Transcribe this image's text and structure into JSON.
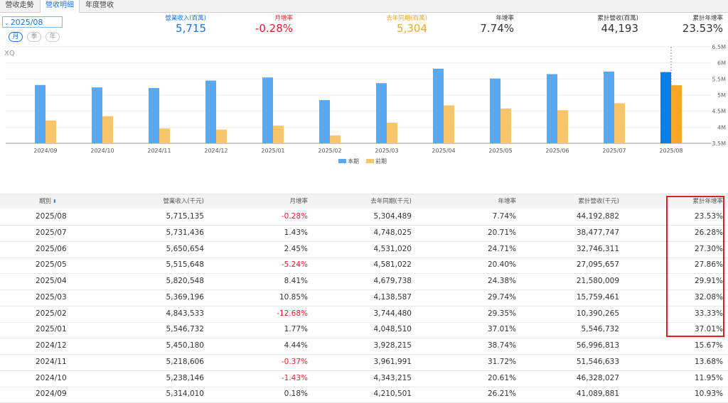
{
  "tabs": [
    "營收走勢",
    "營收明細",
    "年度營收"
  ],
  "date_select": {
    "value": "2025/08"
  },
  "period_buttons": [
    "月",
    "季",
    "年"
  ],
  "stats": [
    {
      "label": "營業收入(百萬)",
      "value": "5,715",
      "color": "#1a73e8"
    },
    {
      "label": "月增率",
      "value": "-0.28%",
      "color": "#e0202e"
    },
    {
      "label": "去年同期(百萬)",
      "value": "5,304",
      "color": "#f5a623"
    },
    {
      "label": "年增率",
      "value": "7.74%",
      "color": "#333333"
    },
    {
      "label": "累計營收(百萬)",
      "value": "44,193",
      "color": "#333333"
    },
    {
      "label": "累計年增率",
      "value": "23.53%",
      "color": "#333333"
    }
  ],
  "watermark": "XQ",
  "chart_data": {
    "type": "bar",
    "categories": [
      "2024/09",
      "2024/10",
      "2024/11",
      "2024/12",
      "2025/01",
      "2025/02",
      "2025/03",
      "2025/04",
      "2025/05",
      "2025/06",
      "2025/07",
      "2025/08"
    ],
    "series": [
      {
        "name": "本期",
        "color": "#5aa9f0",
        "values": [
          5314010,
          5238146,
          5218606,
          5450180,
          5546732,
          4843533,
          5369196,
          5820548,
          5515648,
          5650654,
          5731436,
          5715135
        ]
      },
      {
        "name": "前期",
        "color": "#fbc46a",
        "values": [
          4210501,
          4343215,
          3961991,
          3928215,
          4048510,
          3744480,
          4138587,
          4679738,
          4581022,
          4531020,
          4748025,
          5304489
        ]
      }
    ],
    "yticks": [
      "3.5M",
      "4M",
      "4.5M",
      "5M",
      "5.5M",
      "6M",
      "6.5M"
    ],
    "ylim": [
      3500000,
      6500000
    ],
    "highlight_color": "#0a7ee8",
    "highlight_prev_color": "#f5a623",
    "legend_position": "bottom-center"
  },
  "table": {
    "headers": [
      "期別",
      "營業收入(千元)",
      "月增率",
      "去年同期(千元)",
      "年增率",
      "累計營收(千元)",
      "累計年增率"
    ],
    "rows": [
      [
        "2025/08",
        "5,715,135",
        "-0.28%",
        "5,304,489",
        "7.74%",
        "44,192,882",
        "23.53%"
      ],
      [
        "2025/07",
        "5,731,436",
        "1.43%",
        "4,748,025",
        "20.71%",
        "38,477,747",
        "26.28%"
      ],
      [
        "2025/06",
        "5,650,654",
        "2.45%",
        "4,531,020",
        "24.71%",
        "32,746,311",
        "27.30%"
      ],
      [
        "2025/05",
        "5,515,648",
        "-5.24%",
        "4,581,022",
        "20.40%",
        "27,095,657",
        "27.86%"
      ],
      [
        "2025/04",
        "5,820,548",
        "8.41%",
        "4,679,738",
        "24.38%",
        "21,580,009",
        "29.91%"
      ],
      [
        "2025/03",
        "5,369,196",
        "10.85%",
        "4,138,587",
        "29.74%",
        "15,759,461",
        "32.08%"
      ],
      [
        "2025/02",
        "4,843,533",
        "-12.68%",
        "3,744,480",
        "29.35%",
        "10,390,265",
        "33.33%"
      ],
      [
        "2025/01",
        "5,546,732",
        "1.77%",
        "4,048,510",
        "37.01%",
        "5,546,732",
        "37.01%"
      ],
      [
        "2024/12",
        "5,450,180",
        "4.44%",
        "3,928,215",
        "38.74%",
        "56,996,813",
        "15.67%"
      ],
      [
        "2024/11",
        "5,218,606",
        "-0.37%",
        "3,961,991",
        "31.72%",
        "51,546,633",
        "13.68%"
      ],
      [
        "2024/10",
        "5,238,146",
        "-1.43%",
        "4,343,215",
        "20.61%",
        "46,328,027",
        "11.95%"
      ],
      [
        "2024/09",
        "5,314,010",
        "0.18%",
        "4,210,501",
        "26.21%",
        "41,089,881",
        "10.93%"
      ]
    ]
  }
}
